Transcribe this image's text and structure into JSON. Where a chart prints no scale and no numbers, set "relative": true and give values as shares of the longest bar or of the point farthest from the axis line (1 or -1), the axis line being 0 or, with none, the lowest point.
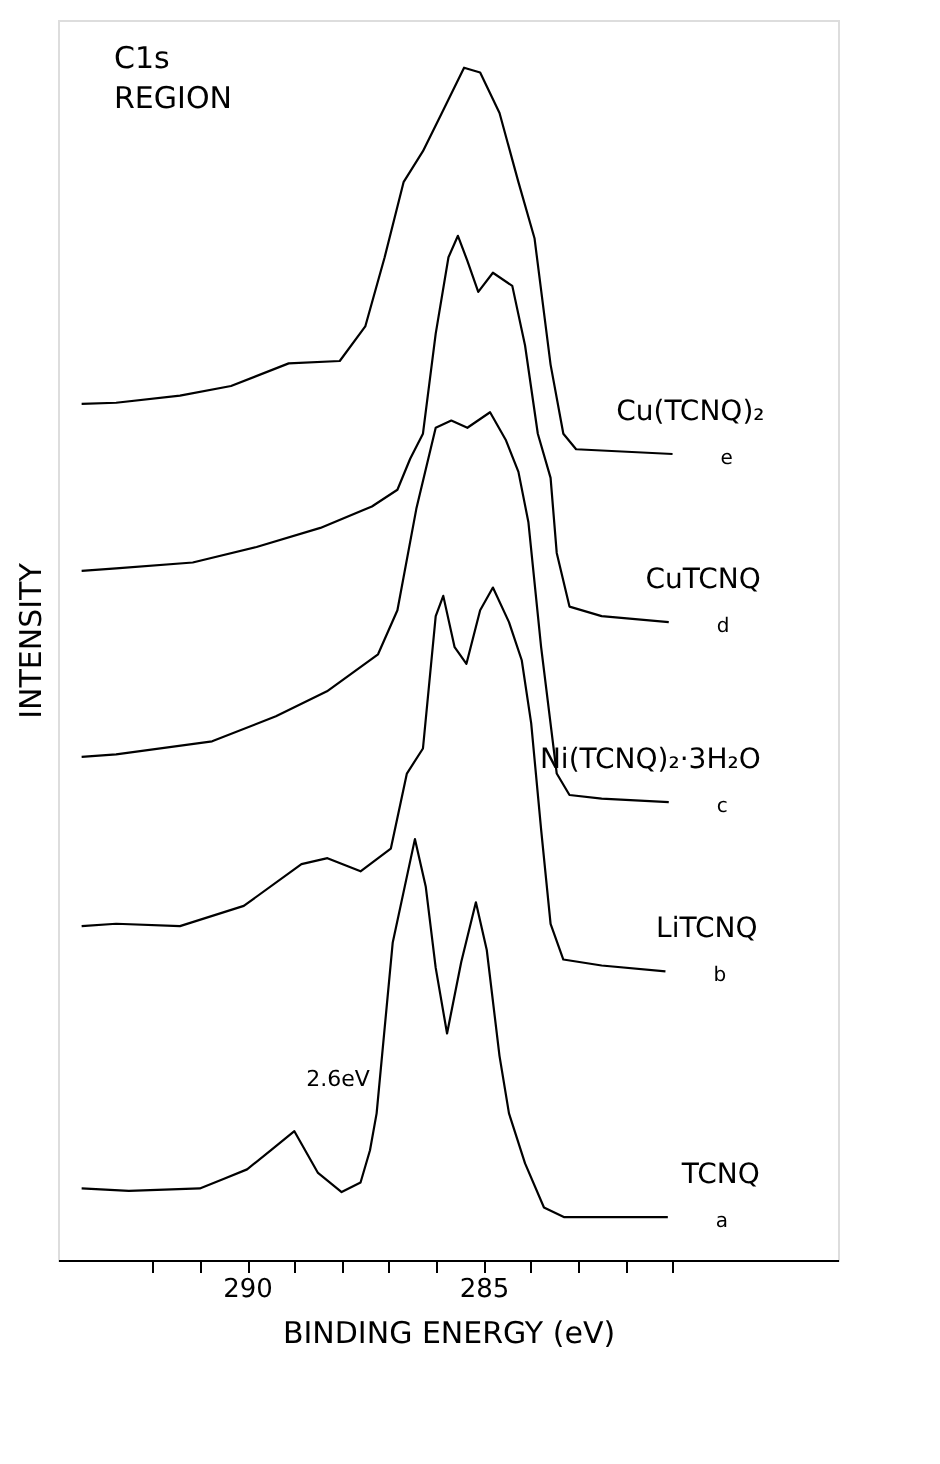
{
  "chart_data": {
    "type": "line",
    "relative": true,
    "xlabel": "BINDING ENERGY (eV)",
    "ylabel": "INTENSITY",
    "xlim": [
      294,
      277.5
    ],
    "xticks": [
      {
        "value": 292,
        "label": null
      },
      {
        "value": 291,
        "label": null
      },
      290,
      {
        "value": 289,
        "label": null
      },
      {
        "value": 288,
        "label": null
      },
      {
        "value": 287,
        "label": null
      },
      {
        "value": 286,
        "label": null
      },
      285,
      {
        "value": 284,
        "label": null
      },
      {
        "value": 283,
        "label": null
      },
      {
        "value": 282,
        "label": null
      },
      {
        "value": 281,
        "label": null
      }
    ],
    "grid": false,
    "legend": false,
    "marker": "none",
    "line_style": "solid",
    "annotations": [
      "C1s REGION",
      "2.6eV",
      "e",
      "d",
      "c",
      "b",
      "a"
    ],
    "series": [
      {
        "name": "Cu(TCNQ)₂",
        "color": "#000000",
        "x": [
          293.5,
          292.77,
          291.42,
          290.34,
          289.12,
          288.04,
          287.5,
          287.09,
          286.69,
          286.28,
          285.88,
          285.41,
          285.07,
          284.66,
          284.26,
          283.92,
          283.58,
          283.31,
          283.04,
          281.0
        ],
        "values": [
          0.718,
          0.719,
          0.725,
          0.733,
          0.752,
          0.754,
          0.783,
          0.841,
          0.904,
          0.93,
          0.962,
          1.0,
          0.996,
          0.962,
          0.904,
          0.857,
          0.751,
          0.693,
          0.68,
          0.676
        ]
      },
      {
        "name": "CuTCNQ",
        "color": "#000000",
        "x": [
          293.5,
          292.77,
          291.15,
          289.8,
          288.45,
          287.36,
          286.82,
          286.55,
          286.28,
          286.01,
          285.74,
          285.54,
          285.34,
          285.11,
          284.8,
          284.39,
          284.12,
          283.85,
          283.58,
          283.45,
          283.18,
          282.5,
          281.08
        ],
        "values": [
          0.578,
          0.58,
          0.585,
          0.598,
          0.614,
          0.632,
          0.646,
          0.672,
          0.693,
          0.777,
          0.841,
          0.859,
          0.838,
          0.812,
          0.828,
          0.817,
          0.767,
          0.693,
          0.656,
          0.593,
          0.548,
          0.54,
          0.535
        ]
      },
      {
        "name": "Ni(TCNQ)₂·3H₂O",
        "color": "#000000",
        "x": [
          293.5,
          292.77,
          290.74,
          289.39,
          288.31,
          287.23,
          286.82,
          286.42,
          286.01,
          285.68,
          285.34,
          284.86,
          284.53,
          284.26,
          284.05,
          283.78,
          283.45,
          283.18,
          282.5,
          281.08
        ],
        "values": [
          0.422,
          0.424,
          0.435,
          0.456,
          0.477,
          0.508,
          0.545,
          0.63,
          0.698,
          0.704,
          0.698,
          0.711,
          0.688,
          0.661,
          0.619,
          0.514,
          0.408,
          0.39,
          0.387,
          0.384
        ]
      },
      {
        "name": "LiTCNQ",
        "color": "#000000",
        "x": [
          293.5,
          292.77,
          291.42,
          290.07,
          288.85,
          288.3,
          287.6,
          286.96,
          286.62,
          286.28,
          286.01,
          285.85,
          285.61,
          285.36,
          285.07,
          284.8,
          284.46,
          284.19,
          283.99,
          283.78,
          283.58,
          283.31,
          282.5,
          281.15
        ],
        "values": [
          0.28,
          0.282,
          0.28,
          0.297,
          0.332,
          0.337,
          0.326,
          0.345,
          0.408,
          0.429,
          0.54,
          0.557,
          0.514,
          0.5,
          0.545,
          0.564,
          0.535,
          0.503,
          0.45,
          0.361,
          0.282,
          0.252,
          0.247,
          0.242
        ]
      },
      {
        "name": "TCNQ",
        "color": "#000000",
        "x": [
          293.5,
          292.5,
          291.0,
          290.5,
          290.0,
          289.5,
          289.0,
          288.5,
          288.0,
          287.6,
          287.4,
          287.26,
          286.92,
          286.45,
          286.22,
          286.01,
          285.77,
          285.47,
          285.16,
          284.93,
          284.66,
          284.46,
          284.12,
          283.72,
          283.3,
          281.1
        ],
        "values": [
          0.06,
          0.058,
          0.06,
          0.068,
          0.076,
          0.092,
          0.108,
          0.073,
          0.057,
          0.065,
          0.092,
          0.123,
          0.266,
          0.353,
          0.313,
          0.245,
          0.19,
          0.25,
          0.3,
          0.26,
          0.171,
          0.123,
          0.081,
          0.044,
          0.036,
          0.036
        ]
      }
    ]
  }
}
